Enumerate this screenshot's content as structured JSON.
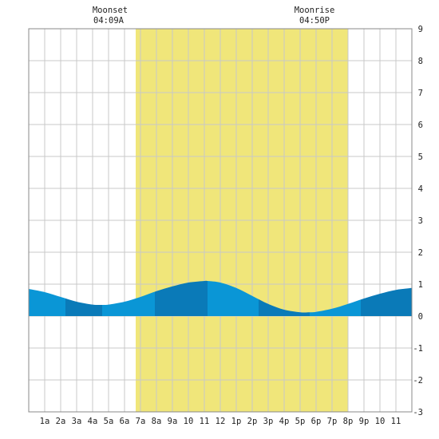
{
  "header": {
    "moonset": {
      "label": "Moonset",
      "time": "04:09A"
    },
    "moonrise": {
      "label": "Moonrise",
      "time": "04:50P"
    }
  },
  "chart_data": {
    "type": "area",
    "title": "",
    "xlabel": "",
    "ylabel": "",
    "xlim": [
      0,
      24
    ],
    "ylim": [
      -3,
      9
    ],
    "grid": true,
    "x_ticks": [
      {
        "x": 1,
        "label": "1a"
      },
      {
        "x": 2,
        "label": "2a"
      },
      {
        "x": 3,
        "label": "3a"
      },
      {
        "x": 4,
        "label": "4a"
      },
      {
        "x": 5,
        "label": "5a"
      },
      {
        "x": 6,
        "label": "6a"
      },
      {
        "x": 7,
        "label": "7a"
      },
      {
        "x": 8,
        "label": "8a"
      },
      {
        "x": 9,
        "label": "9a"
      },
      {
        "x": 10,
        "label": "10"
      },
      {
        "x": 11,
        "label": "11"
      },
      {
        "x": 12,
        "label": "12"
      },
      {
        "x": 13,
        "label": "1p"
      },
      {
        "x": 14,
        "label": "2p"
      },
      {
        "x": 15,
        "label": "3p"
      },
      {
        "x": 16,
        "label": "4p"
      },
      {
        "x": 17,
        "label": "5p"
      },
      {
        "x": 18,
        "label": "6p"
      },
      {
        "x": 19,
        "label": "7p"
      },
      {
        "x": 20,
        "label": "8p"
      },
      {
        "x": 21,
        "label": "9p"
      },
      {
        "x": 22,
        "label": "10"
      },
      {
        "x": 23,
        "label": "11"
      }
    ],
    "y_ticks": [
      -3,
      -2,
      -1,
      0,
      1,
      2,
      3,
      4,
      5,
      6,
      7,
      8,
      9
    ],
    "daylight": {
      "start": 6.7,
      "end": 20.0,
      "color": "#f0e67a"
    },
    "series": [
      {
        "color_light": "#0a96d6",
        "color_dark": "#0a7ab8",
        "x": [
          0,
          1,
          2,
          3,
          4,
          4.6,
          5,
          6,
          7,
          8,
          9,
          10,
          11,
          11.2,
          12,
          13,
          14,
          15,
          16,
          17,
          17.6,
          18,
          19,
          20,
          21,
          22,
          23,
          24
        ],
        "y": [
          0.85,
          0.75,
          0.6,
          0.45,
          0.36,
          0.35,
          0.36,
          0.45,
          0.6,
          0.78,
          0.93,
          1.05,
          1.1,
          1.1,
          1.05,
          0.88,
          0.63,
          0.38,
          0.2,
          0.12,
          0.12,
          0.13,
          0.23,
          0.38,
          0.55,
          0.7,
          0.82,
          0.88
        ]
      }
    ]
  }
}
